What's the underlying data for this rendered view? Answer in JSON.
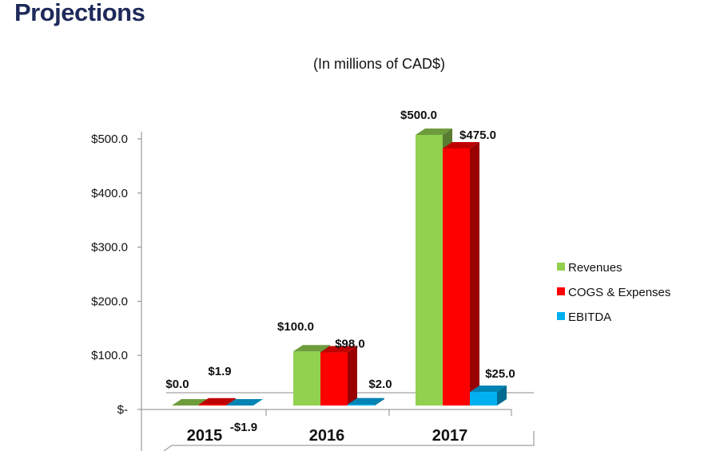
{
  "chart_data": {
    "type": "bar",
    "title": "Projections",
    "subtitle": "(In millions of CAD$)",
    "categories": [
      "2015",
      "2016",
      "2017"
    ],
    "series": [
      {
        "name": "Revenues",
        "values": [
          0.0,
          100.0,
          500.0
        ],
        "labels": [
          "$0.0",
          "$100.0",
          "$500.0"
        ],
        "color": "#92d050"
      },
      {
        "name": "COGS & Expenses",
        "values": [
          1.9,
          98.0,
          475.0
        ],
        "labels": [
          "$1.9",
          "$98.0",
          "$475.0"
        ],
        "color": "#ff0000"
      },
      {
        "name": "EBITDA",
        "values": [
          -1.9,
          2.0,
          25.0
        ],
        "labels": [
          "-$1.9",
          "$2.0",
          "$25.0"
        ],
        "color": "#00b0f0"
      }
    ],
    "yticks": [
      "$-",
      "$100.0",
      "$200.0",
      "$300.0",
      "$400.0",
      "$500.0"
    ],
    "ylim": [
      0,
      500
    ],
    "legend": "right",
    "grid": false,
    "style": "3d-column"
  }
}
